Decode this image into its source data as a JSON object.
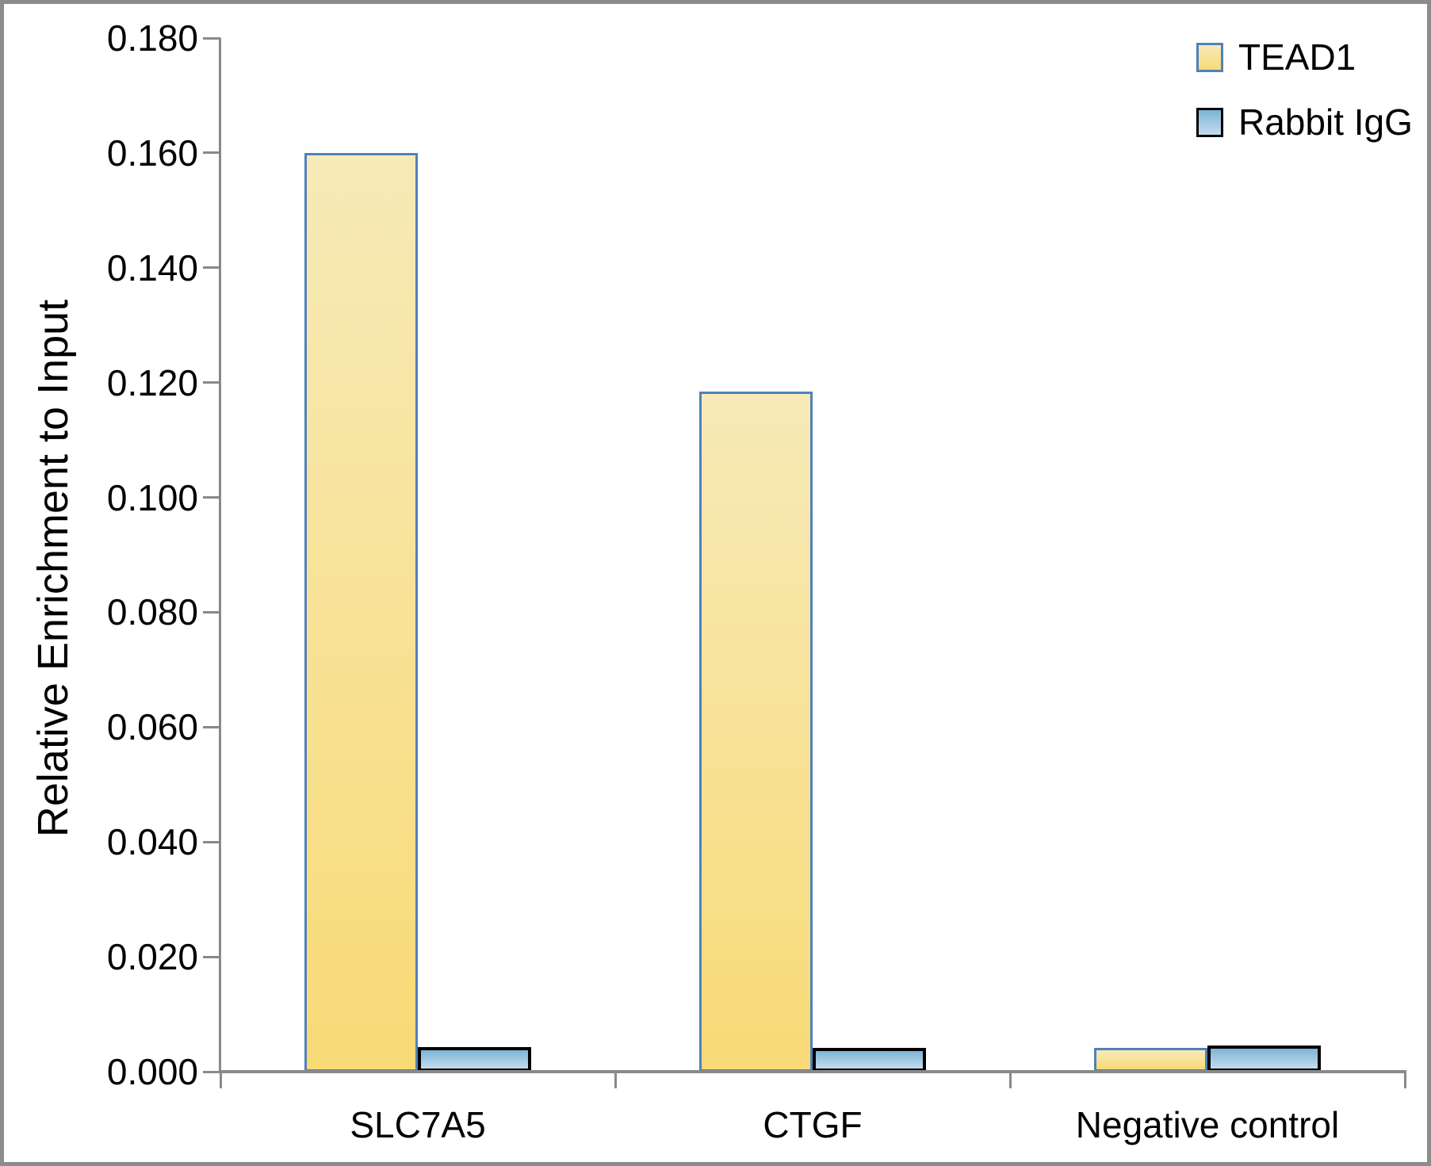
{
  "chart_data": {
    "type": "bar",
    "title": "",
    "xlabel": "",
    "ylabel": "Relative Enrichment to Input",
    "categories": [
      "SLC7A5",
      "CTGF",
      "Negative control"
    ],
    "series": [
      {
        "name": "TEAD1",
        "values": [
          0.16,
          0.1185,
          0.0041
        ],
        "fill_top": "#f7eab8",
        "fill_bottom": "#f8da76",
        "border_color": "#4f81bd"
      },
      {
        "name": "Rabbit IgG",
        "values": [
          0.0043,
          0.0042,
          0.0045
        ],
        "fill_top": "#7eb4d6",
        "fill_bottom": "#c3dcee",
        "border_color": "#000000"
      }
    ],
    "y_ticks": [
      "0.000",
      "0.020",
      "0.040",
      "0.060",
      "0.080",
      "0.100",
      "0.120",
      "0.140",
      "0.160",
      "0.180"
    ],
    "ylim": [
      0,
      0.18
    ],
    "grid": false,
    "legend_position": "top-right",
    "axis_color": "#898989",
    "text_color": "#000000",
    "background_color": "#ffffff",
    "frame_color": "#8c8c8c"
  }
}
